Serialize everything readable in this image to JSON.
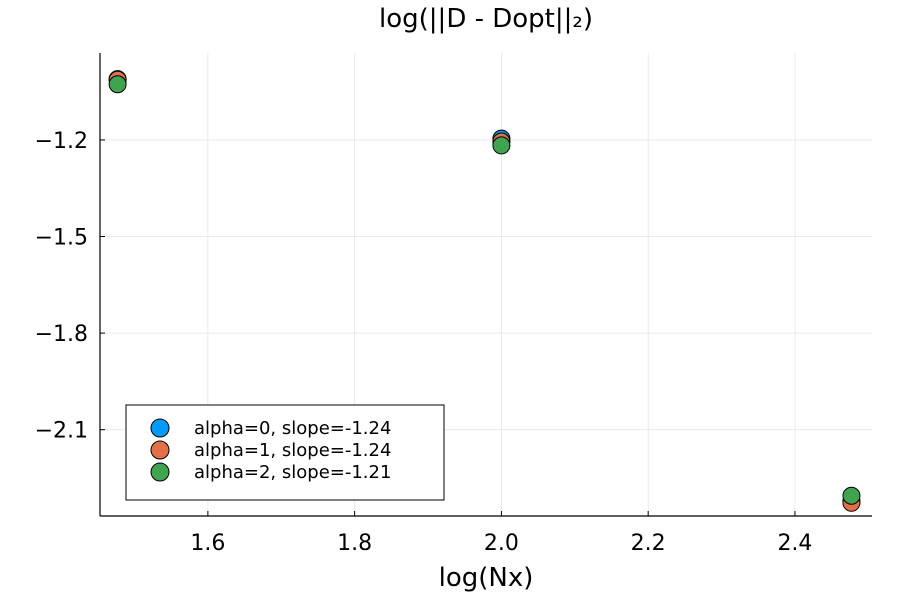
{
  "chart_data": {
    "type": "scatter",
    "title": "log(||D - Dopt||₂)",
    "xlabel": "log(Nx)",
    "ylabel": "",
    "xlim": [
      1.453,
      2.505
    ],
    "ylim": [
      -2.368,
      -0.93
    ],
    "xticks": [
      1.6,
      1.8,
      2.0,
      2.2,
      2.4
    ],
    "xtick_labels": [
      "1.6",
      "1.8",
      "2.0",
      "2.2",
      "2.4"
    ],
    "yticks": [
      -1.2,
      -1.5,
      -1.8,
      -2.1
    ],
    "ytick_labels": [
      "−1.2",
      "−1.5",
      "−1.8",
      "−2.1"
    ],
    "grid": true,
    "legend_position": "bottom-left",
    "series": [
      {
        "name": "alpha=0, slope=-1.24",
        "color": "#009AFA",
        "points": [
          {
            "x": 1.477,
            "y": -1.011
          },
          {
            "x": 2.0,
            "y": -1.196
          },
          {
            "x": 2.477,
            "y": -2.321
          }
        ]
      },
      {
        "name": "alpha=1, slope=-1.24",
        "color": "#E36F47",
        "points": [
          {
            "x": 1.477,
            "y": -1.013
          },
          {
            "x": 2.0,
            "y": -1.205
          },
          {
            "x": 2.477,
            "y": -2.327
          }
        ]
      },
      {
        "name": "alpha=2, slope=-1.21",
        "color": "#3EA44E",
        "points": [
          {
            "x": 1.477,
            "y": -1.027
          },
          {
            "x": 2.0,
            "y": -1.217
          },
          {
            "x": 2.477,
            "y": -2.305
          }
        ]
      }
    ]
  }
}
